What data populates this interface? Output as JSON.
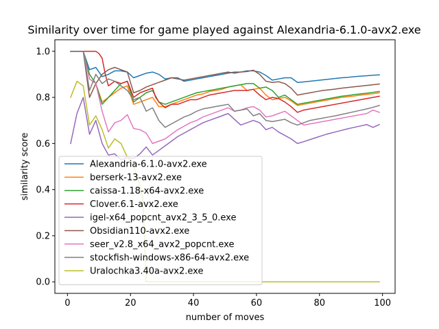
{
  "chart_data": {
    "type": "line",
    "title": "Similarity over time for game played against Alexandria-6.1.0-avx2.exe",
    "xlabel": "number of moves",
    "ylabel": "similarity score",
    "xlim": [
      -4,
      104
    ],
    "ylim": [
      -0.05,
      1.05
    ],
    "xticks": [
      0,
      20,
      40,
      60,
      80,
      100
    ],
    "yticks": [
      0.0,
      0.2,
      0.4,
      0.6,
      0.8,
      1.0
    ],
    "xtick_labels": [
      "0",
      "20",
      "40",
      "60",
      "80",
      "100"
    ],
    "ytick_labels": [
      "0.0",
      "0.2",
      "0.4",
      "0.6",
      "0.8",
      "1.0"
    ],
    "grid": false,
    "legend_position": "lower-left",
    "series": [
      {
        "name": "Alexandria-6.1.0-avx2.exe",
        "color": "#1f77b4",
        "x": [
          1,
          3,
          5,
          7,
          9,
          11,
          13,
          15,
          17,
          19,
          21,
          23,
          25,
          27,
          29,
          31,
          33,
          35,
          37,
          39,
          41,
          43,
          45,
          47,
          49,
          51,
          53,
          55,
          57,
          59,
          61,
          63,
          65,
          67,
          69,
          71,
          73,
          75,
          77,
          79,
          81,
          83,
          85,
          87,
          89,
          91,
          93,
          95,
          97,
          99
        ],
        "y": [
          1.0,
          1.0,
          1.0,
          0.92,
          0.93,
          0.89,
          0.9,
          0.915,
          0.915,
          0.91,
          0.885,
          0.895,
          0.905,
          0.91,
          0.9,
          0.88,
          0.885,
          0.885,
          0.87,
          0.875,
          0.88,
          0.885,
          0.89,
          0.895,
          0.9,
          0.905,
          0.91,
          0.91,
          0.915,
          0.915,
          0.91,
          0.895,
          0.875,
          0.88,
          0.885,
          0.885,
          0.865,
          0.867,
          0.87,
          0.873,
          0.876,
          0.879,
          0.882,
          0.885,
          0.887,
          0.89,
          0.892,
          0.894,
          0.896,
          0.898
        ]
      },
      {
        "name": "berserk-13-avx2.exe",
        "color": "#ff7f0e",
        "x": [
          1,
          3,
          5,
          7,
          9,
          11,
          13,
          15,
          17,
          19,
          21,
          23,
          25,
          27,
          29,
          31,
          33,
          35,
          37,
          39,
          41,
          43,
          45,
          47,
          49,
          51,
          53,
          55,
          57,
          59,
          61,
          63,
          65,
          67,
          69,
          71,
          73,
          75,
          77,
          79,
          81,
          83,
          85,
          87,
          89,
          91,
          93,
          95,
          97,
          99
        ],
        "y": [
          1.0,
          1.0,
          1.0,
          0.88,
          0.86,
          0.78,
          0.8,
          0.82,
          0.84,
          0.85,
          0.77,
          0.78,
          0.79,
          0.8,
          0.76,
          0.76,
          0.77,
          0.78,
          0.79,
          0.8,
          0.81,
          0.815,
          0.825,
          0.83,
          0.835,
          0.845,
          0.85,
          0.855,
          0.83,
          0.835,
          0.84,
          0.81,
          0.79,
          0.795,
          0.8,
          0.785,
          0.765,
          0.77,
          0.775,
          0.78,
          0.785,
          0.79,
          0.795,
          0.8,
          0.803,
          0.806,
          0.81,
          0.813,
          0.816,
          0.82
        ]
      },
      {
        "name": "caissa-1.18-x64-avx2.exe",
        "color": "#2ca02c",
        "x": [
          1,
          3,
          5,
          7,
          9,
          11,
          13,
          15,
          17,
          19,
          21,
          23,
          25,
          27,
          29,
          31,
          33,
          35,
          37,
          39,
          41,
          43,
          45,
          47,
          49,
          51,
          53,
          55,
          57,
          59,
          61,
          63,
          65,
          67,
          69,
          71,
          73,
          75,
          77,
          79,
          81,
          83,
          85,
          87,
          89,
          91,
          93,
          95,
          97,
          99
        ],
        "y": [
          1.0,
          1.0,
          1.0,
          0.9,
          0.86,
          0.77,
          0.8,
          0.83,
          0.86,
          0.87,
          0.78,
          0.8,
          0.82,
          0.83,
          0.78,
          0.77,
          0.78,
          0.79,
          0.8,
          0.81,
          0.82,
          0.825,
          0.83,
          0.835,
          0.84,
          0.845,
          0.85,
          0.855,
          0.86,
          0.86,
          0.84,
          0.845,
          0.83,
          0.8,
          0.81,
          0.79,
          0.77,
          0.775,
          0.78,
          0.785,
          0.79,
          0.795,
          0.8,
          0.805,
          0.808,
          0.812,
          0.815,
          0.818,
          0.822,
          0.826
        ]
      },
      {
        "name": "Clover.6.1-avx2.exe",
        "color": "#d62728",
        "x": [
          1,
          3,
          5,
          7,
          9,
          10,
          11,
          12,
          13,
          15,
          17,
          19,
          21,
          23,
          25,
          27,
          28,
          29,
          31,
          33,
          35,
          37,
          39,
          41,
          43,
          45,
          47,
          49,
          51,
          53,
          55,
          57,
          59,
          61,
          63,
          65,
          67,
          69,
          71,
          73,
          75,
          77,
          79,
          81,
          83,
          85,
          87,
          89,
          91,
          93,
          95,
          97,
          99
        ],
        "y": [
          1.0,
          1.0,
          1.0,
          1.0,
          1.0,
          0.99,
          0.97,
          0.9,
          0.85,
          0.87,
          0.86,
          0.87,
          0.8,
          0.82,
          0.83,
          0.84,
          0.8,
          0.78,
          0.755,
          0.77,
          0.77,
          0.78,
          0.79,
          0.79,
          0.8,
          0.81,
          0.815,
          0.82,
          0.825,
          0.83,
          0.83,
          0.83,
          0.835,
          0.81,
          0.79,
          0.8,
          0.795,
          0.78,
          0.76,
          0.735,
          0.745,
          0.75,
          0.755,
          0.76,
          0.765,
          0.77,
          0.775,
          0.78,
          0.785,
          0.79,
          0.795,
          0.8,
          0.805
        ]
      },
      {
        "name": "igel-x64_popcnt_avx2_3_5_0.exe",
        "color": "#9467bd",
        "x": [
          1,
          3,
          5,
          7,
          9,
          11,
          13,
          15,
          17,
          19,
          21,
          23,
          25,
          27,
          29,
          31,
          33,
          35,
          37,
          39,
          41,
          43,
          45,
          47,
          49,
          51,
          53,
          55,
          57,
          59,
          61,
          63,
          65,
          67,
          69,
          71,
          73,
          75,
          77,
          79,
          81,
          83,
          85,
          87,
          89,
          91,
          93,
          95,
          97,
          99
        ],
        "y": [
          0.6,
          0.73,
          0.8,
          0.64,
          0.7,
          0.6,
          0.55,
          0.555,
          0.53,
          0.54,
          0.535,
          0.555,
          0.585,
          0.55,
          0.57,
          0.59,
          0.61,
          0.63,
          0.645,
          0.66,
          0.675,
          0.69,
          0.7,
          0.71,
          0.72,
          0.73,
          0.705,
          0.68,
          0.69,
          0.7,
          0.69,
          0.66,
          0.67,
          0.65,
          0.635,
          0.62,
          0.6,
          0.608,
          0.617,
          0.626,
          0.635,
          0.643,
          0.65,
          0.657,
          0.664,
          0.67,
          0.676,
          0.682,
          0.67,
          0.682
        ]
      },
      {
        "name": "Obsidian110-avx2.exe",
        "color": "#8c564b",
        "x": [
          1,
          3,
          5,
          7,
          9,
          11,
          13,
          15,
          17,
          19,
          21,
          23,
          25,
          27,
          29,
          31,
          33,
          35,
          37,
          39,
          41,
          43,
          45,
          47,
          49,
          51,
          53,
          55,
          57,
          59,
          61,
          63,
          65,
          67,
          69,
          71,
          73,
          75,
          77,
          79,
          81,
          83,
          85,
          87,
          89,
          91,
          93,
          95,
          97,
          99
        ],
        "y": [
          1.0,
          1.0,
          1.0,
          0.8,
          0.86,
          0.9,
          0.92,
          0.93,
          0.92,
          0.91,
          0.82,
          0.83,
          0.845,
          0.855,
          0.865,
          0.875,
          0.885,
          0.88,
          0.875,
          0.88,
          0.885,
          0.89,
          0.895,
          0.9,
          0.905,
          0.91,
          0.905,
          0.91,
          0.912,
          0.918,
          0.9,
          0.87,
          0.865,
          0.868,
          0.86,
          0.84,
          0.81,
          0.815,
          0.82,
          0.825,
          0.83,
          0.833,
          0.836,
          0.84,
          0.843,
          0.846,
          0.849,
          0.852,
          0.855,
          0.858
        ]
      },
      {
        "name": "seer_v2.8_x64_avx2_popcnt.exe",
        "color": "#e377c2",
        "x": [
          1,
          3,
          5,
          7,
          9,
          11,
          13,
          15,
          17,
          19,
          21,
          23,
          25,
          27,
          29,
          31,
          33,
          35,
          37,
          39,
          41,
          43,
          45,
          47,
          49,
          51,
          53,
          55,
          57,
          59,
          61,
          63,
          65,
          67,
          69,
          71,
          73,
          75,
          77,
          79,
          81,
          83,
          85,
          87,
          89,
          91,
          93,
          95,
          97,
          99
        ],
        "y": [
          1.0,
          1.0,
          1.0,
          0.88,
          0.86,
          0.74,
          0.65,
          0.69,
          0.7,
          0.725,
          0.665,
          0.66,
          0.645,
          0.6,
          0.61,
          0.62,
          0.64,
          0.66,
          0.675,
          0.69,
          0.7,
          0.715,
          0.725,
          0.735,
          0.745,
          0.755,
          0.74,
          0.745,
          0.755,
          0.76,
          0.745,
          0.715,
          0.72,
          0.73,
          0.74,
          0.72,
          0.7,
          0.68,
          0.685,
          0.69,
          0.695,
          0.7,
          0.705,
          0.71,
          0.715,
          0.72,
          0.725,
          0.73,
          0.745,
          0.735
        ]
      },
      {
        "name": "stockfish-windows-x86-64-avx2.exe",
        "color": "#7f7f7f",
        "x": [
          1,
          3,
          5,
          7,
          9,
          11,
          13,
          15,
          17,
          19,
          21,
          23,
          25,
          27,
          29,
          31,
          33,
          35,
          37,
          39,
          41,
          43,
          45,
          47,
          49,
          51,
          53,
          55,
          57,
          59,
          61,
          63,
          65,
          67,
          69,
          71,
          73,
          75,
          77,
          79,
          81,
          83,
          85,
          87,
          89,
          91,
          93,
          95,
          97,
          99
        ],
        "y": [
          1.0,
          1.0,
          1.0,
          0.83,
          0.9,
          0.86,
          0.88,
          0.87,
          0.85,
          0.83,
          0.79,
          0.8,
          0.74,
          0.755,
          0.7,
          0.67,
          0.685,
          0.7,
          0.715,
          0.725,
          0.74,
          0.75,
          0.755,
          0.76,
          0.765,
          0.77,
          0.74,
          0.745,
          0.75,
          0.72,
          0.73,
          0.7,
          0.695,
          0.7,
          0.705,
          0.69,
          0.68,
          0.69,
          0.7,
          0.705,
          0.71,
          0.715,
          0.72,
          0.726,
          0.732,
          0.738,
          0.744,
          0.75,
          0.757,
          0.765
        ]
      },
      {
        "name": "Uralochka3.40a-avx2.exe",
        "color": "#bcbd22",
        "x": [
          1,
          3,
          5,
          7,
          9,
          11,
          13,
          15,
          17,
          19,
          21,
          23,
          24,
          25,
          27,
          30,
          40,
          50,
          60,
          70,
          80,
          90,
          99
        ],
        "y": [
          0.8,
          0.87,
          0.85,
          0.68,
          0.72,
          0.66,
          0.58,
          0.62,
          0.6,
          0.54,
          0.5,
          0.42,
          0.35,
          0.0,
          0.0,
          0.0,
          0.0,
          0.0,
          0.0,
          0.0,
          0.0,
          0.0,
          0.0
        ]
      }
    ]
  }
}
